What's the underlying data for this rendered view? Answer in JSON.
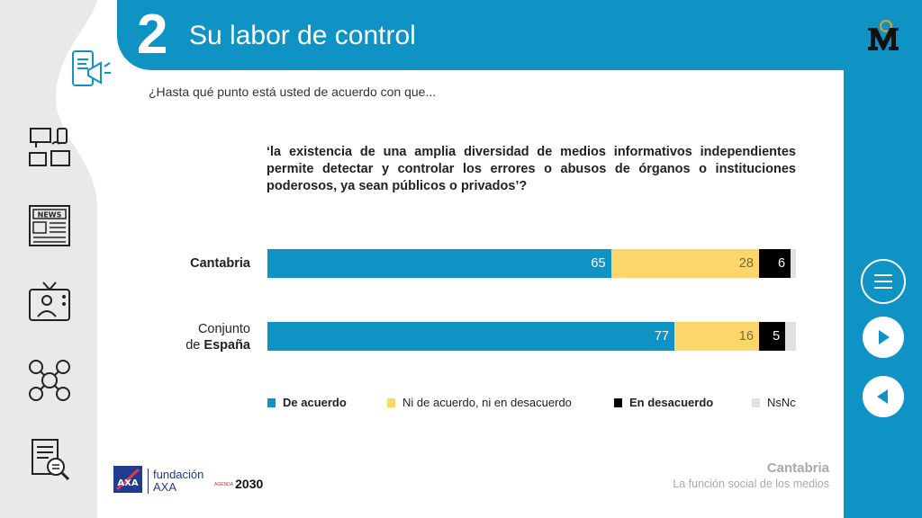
{
  "header": {
    "section_number": "2",
    "section_title": "Su labor de control"
  },
  "question": "¿Hasta qué punto está usted de acuerdo con que...",
  "statement": "‘la existencia de una amplia diversidad de medios informativos independientes permite detectar y controlar  los errores o abusos de órganos o instituciones poderosos, ya sean públicos o privados’?",
  "chart_data": {
    "type": "bar",
    "orientation": "horizontal-stacked",
    "categories": [
      "Cantabria",
      "Conjunto de España"
    ],
    "series": [
      {
        "name": "De acuerdo",
        "values": [
          65,
          77
        ],
        "color": "#0f93c5"
      },
      {
        "name": "Ni de acuerdo, ni en desacuerdo",
        "values": [
          28,
          16
        ],
        "color": "#fbd76a"
      },
      {
        "name": "En desacuerdo",
        "values": [
          6,
          5
        ],
        "color": "#000000"
      },
      {
        "name": "NsNc",
        "values": [
          1,
          2
        ],
        "color": "#e0e0e0"
      }
    ],
    "xlim": [
      0,
      100
    ],
    "legend_position": "bottom"
  },
  "rows": [
    {
      "label_pre": "",
      "label_bold": "Cantabria"
    },
    {
      "label_pre": "Conjunto",
      "label_line2_pre": "de ",
      "label_bold": "España"
    }
  ],
  "legend": [
    {
      "label": "De acuerdo",
      "bold": true
    },
    {
      "label": "Ni de acuerdo, ni en desacuerdo",
      "bold": false
    },
    {
      "label": "En desacuerdo",
      "bold": true
    },
    {
      "label": "NsNc",
      "bold": false
    }
  ],
  "footer": {
    "region": "Cantabria",
    "subtitle": "La función social de los medios",
    "foundation_line1": "fundación",
    "foundation_line2": "AXA",
    "agenda_small": "AGENDA",
    "agenda_year": "2030"
  },
  "icons": {
    "left": [
      "phone-megaphone-icon",
      "devices-icon",
      "newspaper-icon",
      "tv-presenter-icon",
      "social-media-icon",
      "document-search-icon"
    ],
    "right": [
      "menu-icon",
      "next-icon",
      "previous-icon"
    ]
  }
}
